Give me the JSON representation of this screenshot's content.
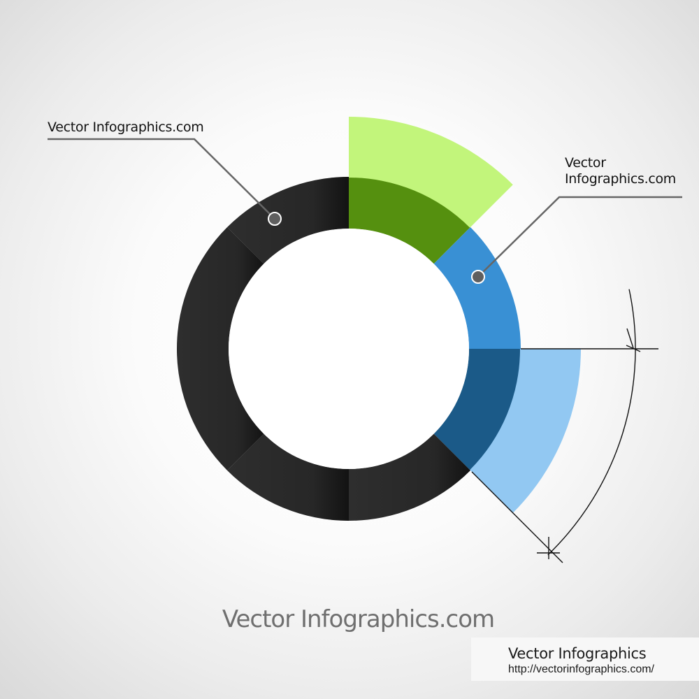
{
  "callouts": {
    "left_label": "Vector Infographics.com",
    "right_label": "Vector Infographics.com"
  },
  "caption": "Vector Infographics.com",
  "credit": {
    "title": "Vector Infographics",
    "url": "http://vectorinfographics.com/"
  },
  "ring": {
    "segment_count": 8,
    "segments": [
      {
        "name": "segment-1",
        "color": "#2e2e2e",
        "highlight": "#55900f",
        "extended": true,
        "extended_color": "#c2f57b"
      },
      {
        "name": "segment-2",
        "color": "#3990d4",
        "extended": false
      },
      {
        "name": "segment-3",
        "color": "#1b5a88",
        "extended": true,
        "extended_color": "#92c8f2"
      },
      {
        "name": "segment-4",
        "color": "#2e2e2e",
        "extended": false
      },
      {
        "name": "segment-5",
        "color": "#2e2e2e",
        "extended": false
      },
      {
        "name": "segment-6",
        "color": "#2e2e2e",
        "extended": false
      },
      {
        "name": "segment-7",
        "color": "#2e2e2e",
        "extended": false
      },
      {
        "name": "segment-8",
        "color": "#2e2e2e",
        "extended": false
      }
    ]
  },
  "colors": {
    "ring_dark": "#2e2e2e",
    "green_dark": "#55900f",
    "green_light": "#c2f57b",
    "blue_mid": "#3990d4",
    "blue_dark": "#1b5a88",
    "blue_light": "#92c8f2",
    "leader_line": "#666666",
    "dot_fill": "#5f5f5f"
  }
}
